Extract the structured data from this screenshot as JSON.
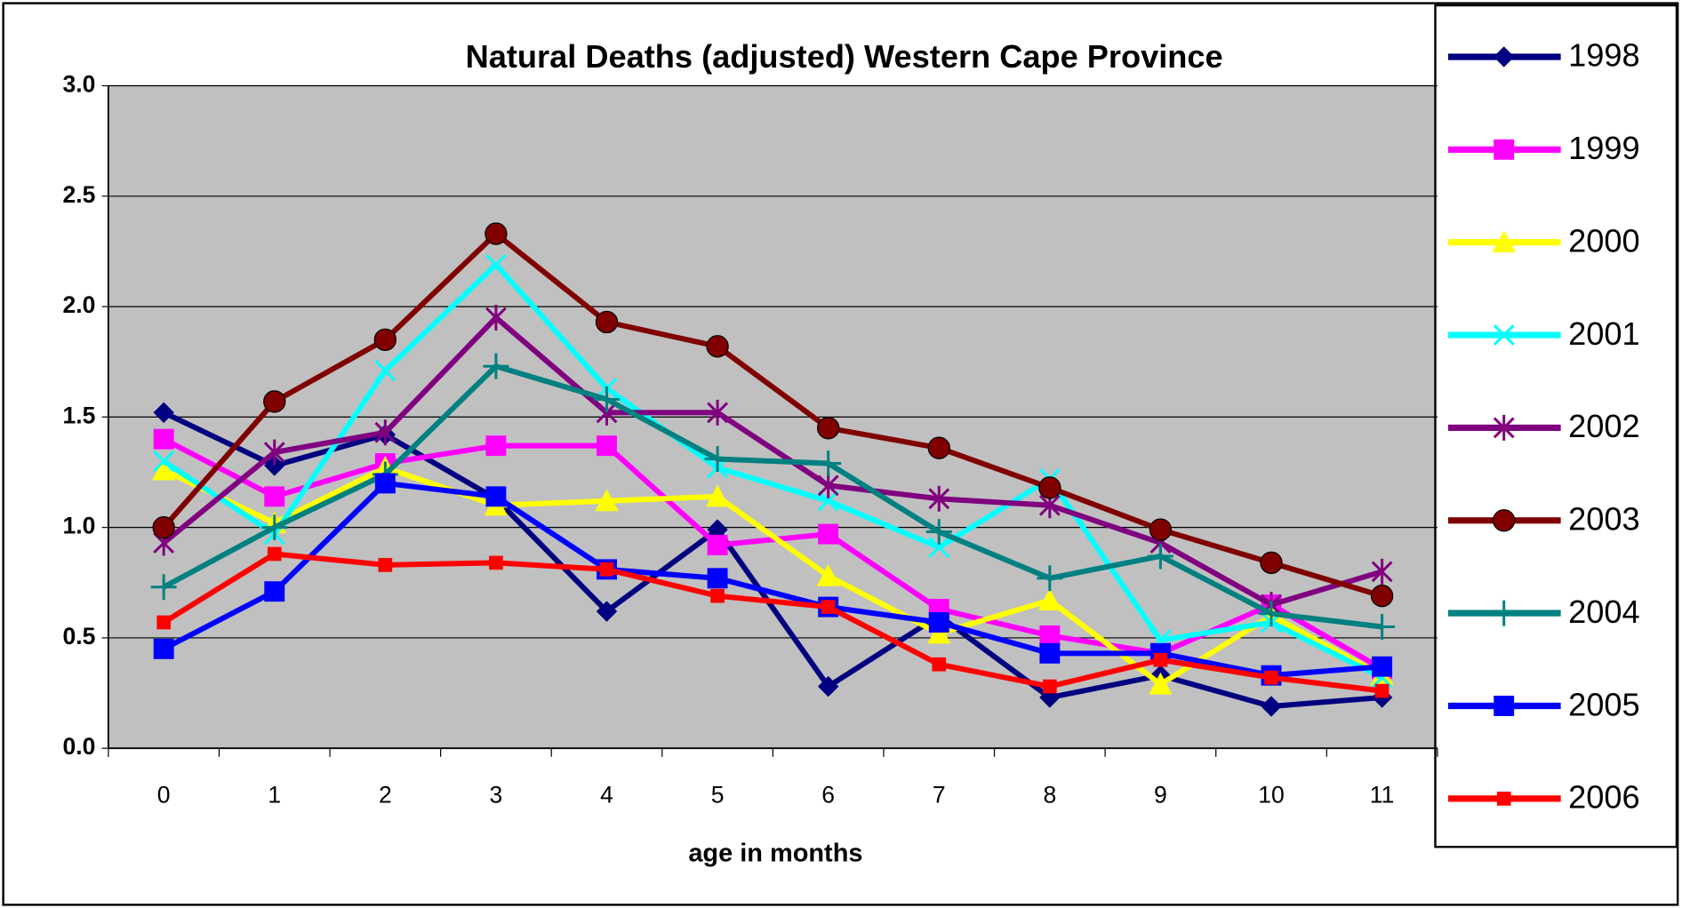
{
  "chart_data": {
    "type": "line",
    "title": "Natural Deaths (adjusted) Western Cape Province",
    "x_label": "age in months",
    "categories": [
      "0",
      "1",
      "2",
      "3",
      "4",
      "5",
      "6",
      "7",
      "8",
      "9",
      "10",
      "11"
    ],
    "ylim": [
      0,
      3
    ],
    "yticks": [
      {
        "value": 0,
        "label": "0.0"
      },
      0.5,
      {
        "value": 1,
        "label": "1.0"
      },
      1.5,
      {
        "value": 2,
        "label": "2.0"
      },
      2.5,
      {
        "value": 3,
        "label": "3.0"
      }
    ],
    "grid": true,
    "legend": "right",
    "series": [
      {
        "name": "1998",
        "color": "#000080",
        "marker": "diamond",
        "values": [
          1.52,
          1.28,
          1.42,
          1.13,
          0.62,
          0.99,
          0.28,
          0.6,
          0.23,
          0.33,
          0.19,
          0.23
        ]
      },
      {
        "name": "1999",
        "color": "#ff00ff",
        "marker": "square",
        "values": [
          1.4,
          1.14,
          1.29,
          1.37,
          1.37,
          0.92,
          0.97,
          0.63,
          0.51,
          0.43,
          0.65,
          0.36
        ]
      },
      {
        "name": "2000",
        "color": "#ffff00",
        "marker": "triangle",
        "values": [
          1.26,
          1.02,
          1.27,
          1.1,
          1.12,
          1.14,
          0.78,
          0.52,
          0.67,
          0.29,
          0.6,
          0.33
        ]
      },
      {
        "name": "2001",
        "color": "#00ffff",
        "marker": "x",
        "values": [
          1.3,
          0.97,
          1.71,
          2.19,
          1.63,
          1.27,
          1.12,
          0.91,
          1.22,
          0.49,
          0.57,
          0.32
        ]
      },
      {
        "name": "2002",
        "color": "#800080",
        "marker": "star",
        "values": [
          0.93,
          1.34,
          1.43,
          1.95,
          1.52,
          1.52,
          1.19,
          1.13,
          1.1,
          0.93,
          0.65,
          0.8
        ]
      },
      {
        "name": "2003",
        "color": "#800000",
        "marker": "circle",
        "values": [
          1.0,
          1.57,
          1.85,
          2.33,
          1.93,
          1.82,
          1.45,
          1.36,
          1.18,
          0.99,
          0.84,
          0.69
        ]
      },
      {
        "name": "2004",
        "color": "#008080",
        "marker": "plus",
        "values": [
          0.73,
          1.0,
          1.24,
          1.73,
          1.58,
          1.31,
          1.29,
          0.98,
          0.77,
          0.87,
          0.61,
          0.55
        ]
      },
      {
        "name": "2005",
        "color": "#0000ff",
        "marker": "square",
        "values": [
          0.45,
          0.71,
          1.2,
          1.14,
          0.81,
          0.77,
          0.64,
          0.57,
          0.43,
          0.43,
          0.33,
          0.37
        ]
      },
      {
        "name": "2006",
        "color": "#ff0000",
        "marker": "smallsquare",
        "values": [
          0.57,
          0.88,
          0.83,
          0.84,
          0.81,
          0.69,
          0.64,
          0.38,
          0.28,
          0.4,
          0.32,
          0.26
        ]
      }
    ]
  }
}
